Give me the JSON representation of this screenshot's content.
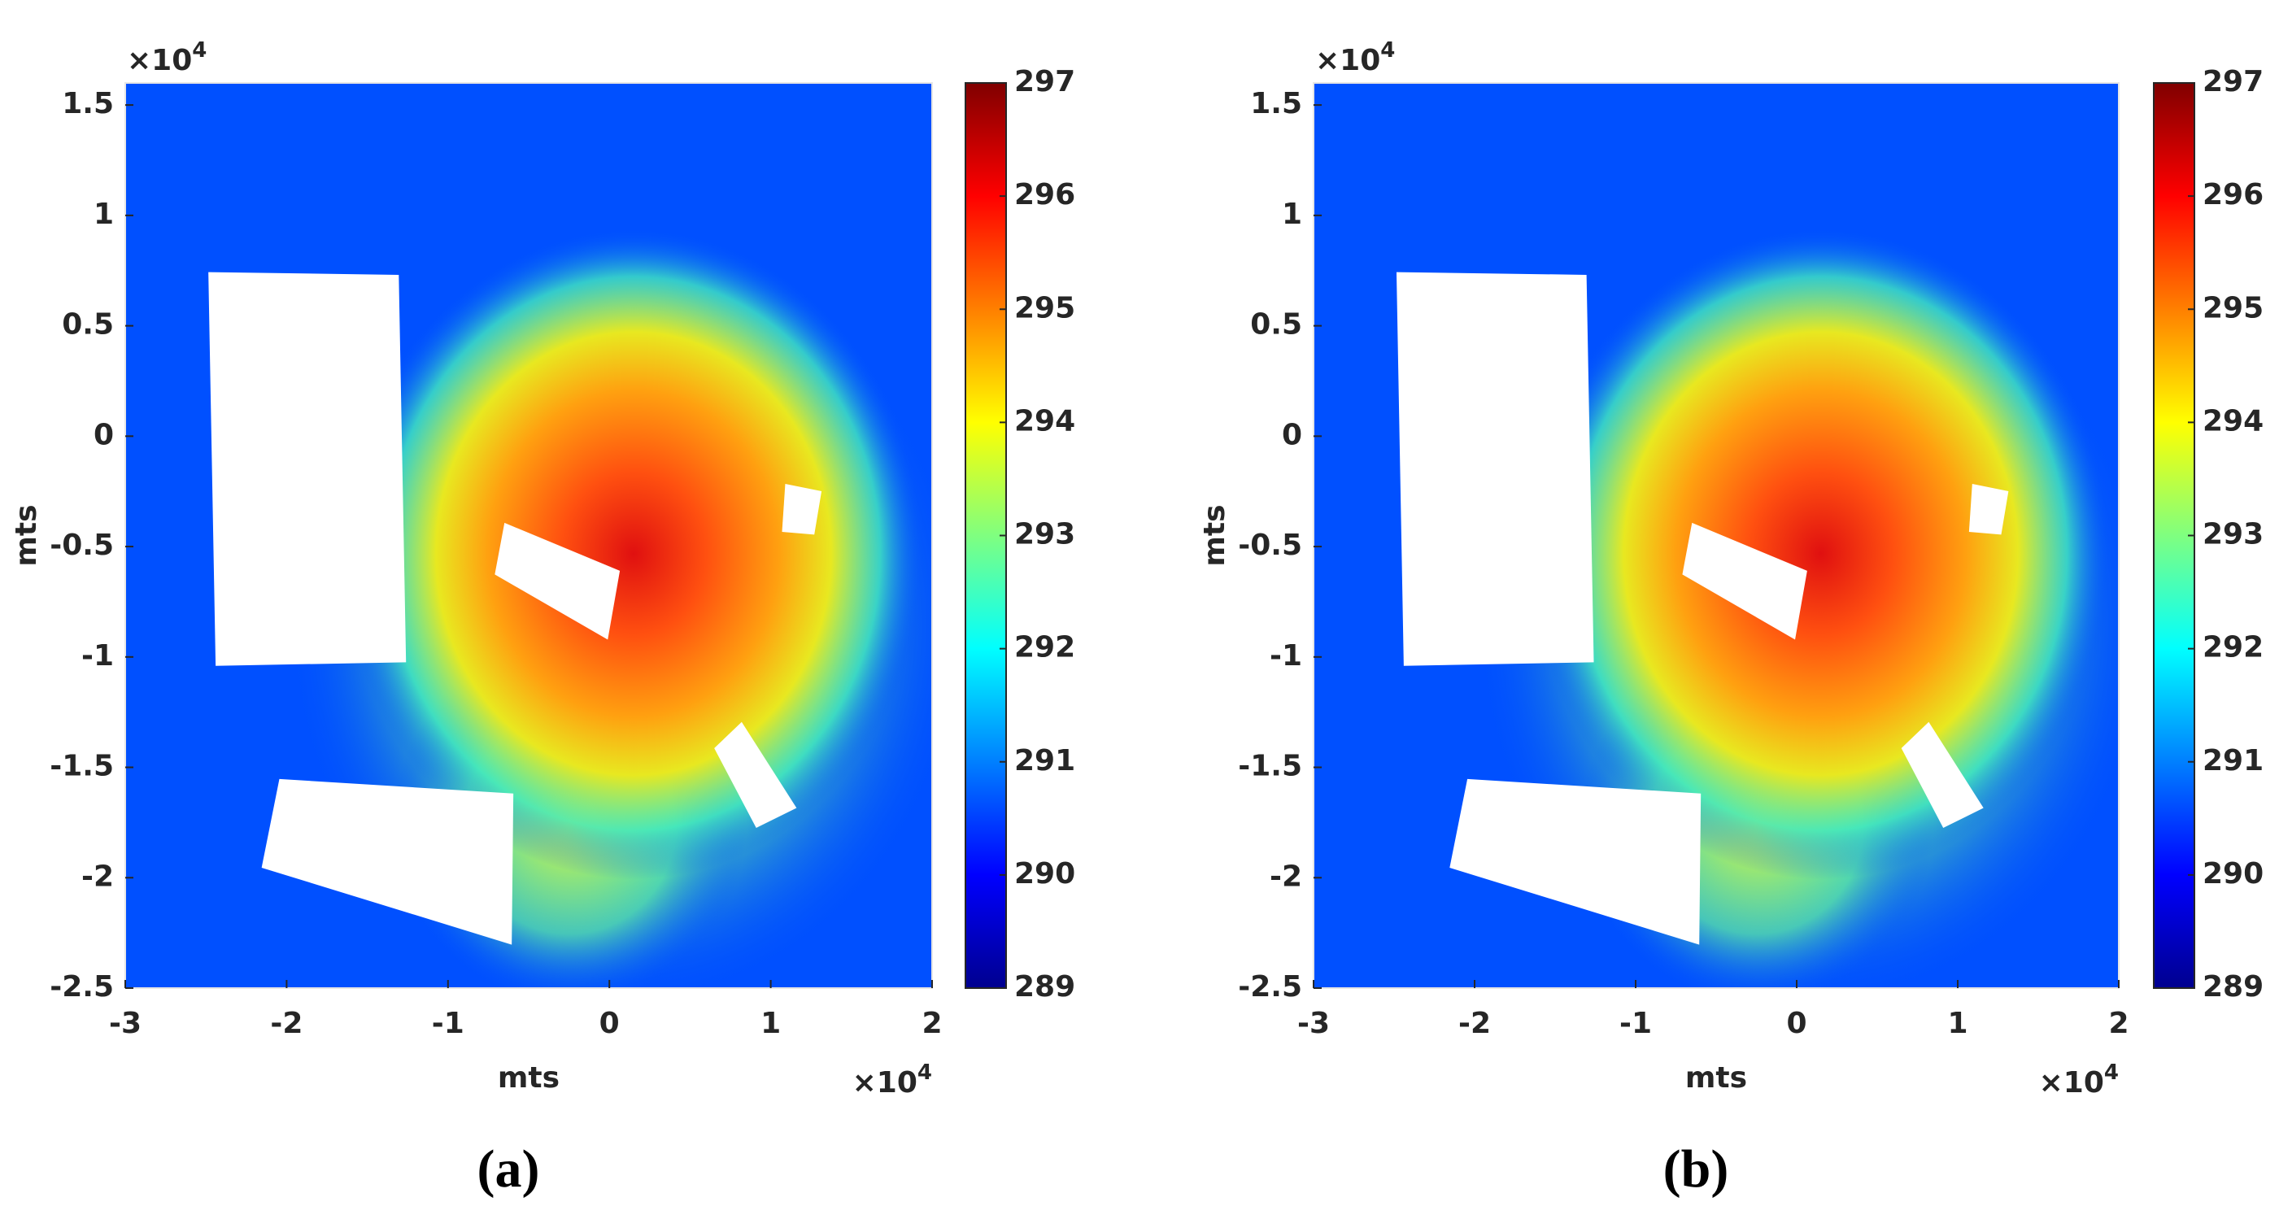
{
  "chart_data": [
    {
      "type": "heatmap",
      "label": "(a)",
      "xlabel": "mts",
      "ylabel": "mts",
      "x_multiplier": "×10",
      "x_exponent": "4",
      "y_multiplier": "×10",
      "y_exponent": "4",
      "xlim": [
        -3,
        2
      ],
      "ylim": [
        -2.5,
        1.6
      ],
      "xticks": [
        -3,
        -2,
        -1,
        0,
        1,
        2
      ],
      "yticks": [
        -2.5,
        -2,
        -1.5,
        -1,
        -0.5,
        0,
        0.5,
        1,
        1.5
      ],
      "colorbar": {
        "lim": [
          289,
          297
        ],
        "ticks": [
          289,
          290,
          291,
          292,
          293,
          294,
          295,
          296,
          297
        ]
      }
    },
    {
      "type": "heatmap",
      "label": "(b)",
      "xlabel": "mts",
      "ylabel": "mts",
      "x_multiplier": "×10",
      "x_exponent": "4",
      "y_multiplier": "×10",
      "y_exponent": "4",
      "xlim": [
        -3,
        2
      ],
      "ylim": [
        -2.5,
        1.6
      ],
      "xticks": [
        -3,
        -2,
        -1,
        0,
        1,
        2
      ],
      "yticks": [
        -2.5,
        -2,
        -1.5,
        -1,
        -0.5,
        0,
        0.5,
        1,
        1.5
      ],
      "colorbar": {
        "lim": [
          289,
          297
        ],
        "ticks": [
          289,
          290,
          291,
          292,
          293,
          294,
          295,
          296,
          297
        ]
      }
    }
  ]
}
